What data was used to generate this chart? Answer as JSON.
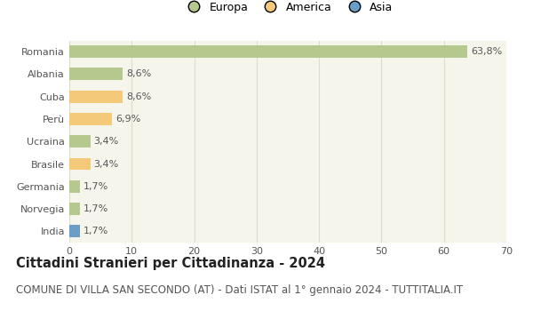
{
  "categories": [
    "Romania",
    "Albania",
    "Cuba",
    "Perù",
    "Ucraina",
    "Brasile",
    "Germania",
    "Norvegia",
    "India"
  ],
  "values": [
    63.8,
    8.6,
    8.6,
    6.9,
    3.4,
    3.4,
    1.7,
    1.7,
    1.7
  ],
  "labels": [
    "63,8%",
    "8,6%",
    "8,6%",
    "6,9%",
    "3,4%",
    "3,4%",
    "1,7%",
    "1,7%",
    "1,7%"
  ],
  "colors": [
    "#b5c98e",
    "#b5c98e",
    "#f5c97a",
    "#f5c97a",
    "#b5c98e",
    "#f5c97a",
    "#b5c98e",
    "#b5c98e",
    "#6b9ec7"
  ],
  "legend_labels": [
    "Europa",
    "America",
    "Asia"
  ],
  "legend_colors": [
    "#b5c98e",
    "#f5c97a",
    "#6b9ec7"
  ],
  "title": "Cittadini Stranieri per Cittadinanza - 2024",
  "subtitle": "COMUNE DI VILLA SAN SECONDO (AT) - Dati ISTAT al 1° gennaio 2024 - TUTTITALIA.IT",
  "xlim": [
    0,
    70
  ],
  "xticks": [
    0,
    10,
    20,
    30,
    40,
    50,
    60,
    70
  ],
  "plot_bg_color": "#f5f5eb",
  "fig_bg_color": "#ffffff",
  "grid_color": "#ddddcc",
  "bar_height": 0.55,
  "title_fontsize": 10.5,
  "subtitle_fontsize": 8.5,
  "label_fontsize": 8,
  "tick_fontsize": 8,
  "legend_fontsize": 9
}
